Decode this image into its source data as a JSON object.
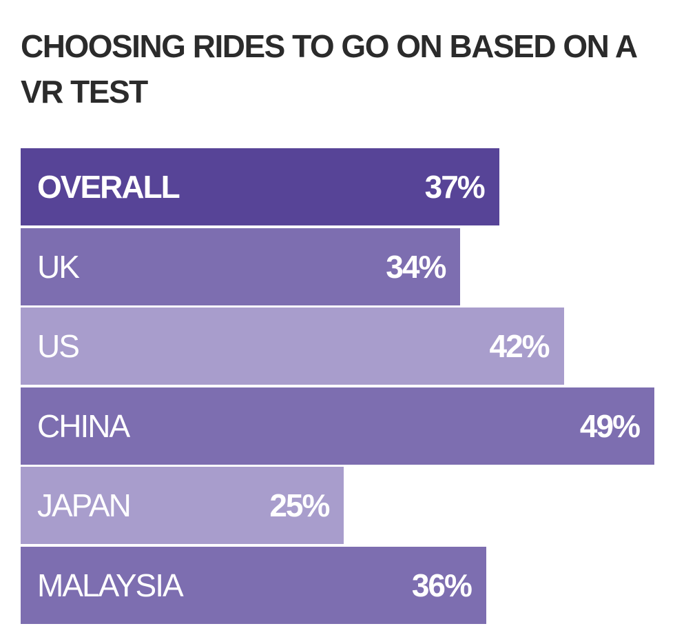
{
  "chart_data": {
    "type": "bar",
    "orientation": "horizontal",
    "title": "CHOOSING RIDES TO GO ON BASED ON A VR TEST",
    "categories": [
      "OVERALL",
      "UK",
      "US",
      "CHINA",
      "JAPAN",
      "MALAYSIA"
    ],
    "values": [
      37,
      34,
      42,
      49,
      25,
      36
    ],
    "value_labels": [
      "37%",
      "34%",
      "42%",
      "49%",
      "25%",
      "36%"
    ],
    "colors": [
      "#574497",
      "#7d6eb0",
      "#a89dcc",
      "#7d6eb0",
      "#a89dcc",
      "#7d6eb0"
    ],
    "xlabel": "",
    "ylabel": "",
    "xlim": [
      0,
      49
    ],
    "grid": false
  }
}
